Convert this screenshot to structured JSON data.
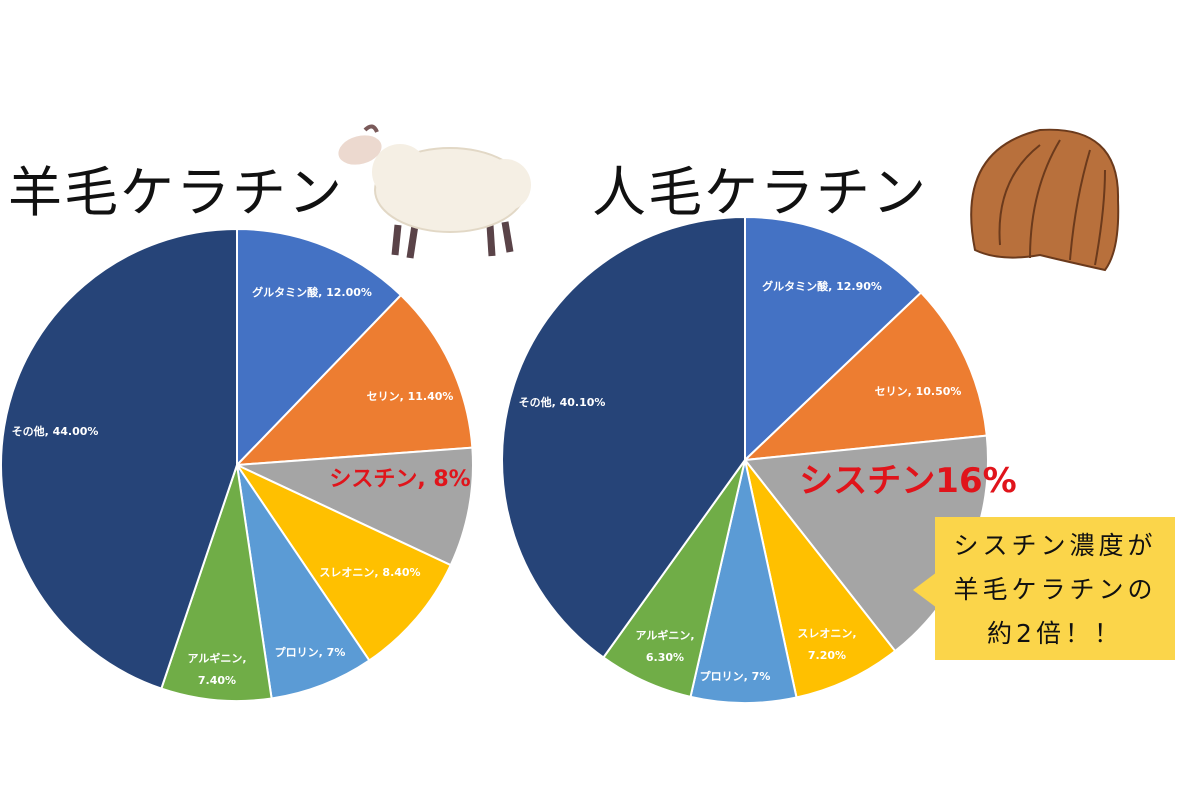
{
  "chart_data": [
    {
      "type": "pie",
      "title": "羊毛ケラチン",
      "categories": [
        "グルタミン酸",
        "セリン",
        "シスチン",
        "スレオニン",
        "プロリン",
        "アルギニン",
        "その他"
      ],
      "values": [
        12.0,
        11.4,
        8,
        8.4,
        7,
        7.4,
        44.0
      ],
      "labels": [
        [
          "グルタミン酸, 12.00%"
        ],
        [
          "セリン, 11.40%"
        ],
        [
          "シスチン, 8%"
        ],
        [
          "スレオニン, 8.40%"
        ],
        [
          "プロリン, 7%"
        ],
        [
          "アルギニン,",
          "7.40%"
        ],
        [
          "その他, 44.00%"
        ]
      ],
      "highlight_index": 2,
      "colors": [
        "#4472c4",
        "#ed7d31",
        "#a5a5a5",
        "#ffc000",
        "#5b9bd5",
        "#70ad47",
        "#264478"
      ]
    },
    {
      "type": "pie",
      "title": "人毛ケラチン",
      "categories": [
        "グルタミン酸",
        "セリン",
        "シスチン",
        "スレオニン",
        "プロリン",
        "アルギニン",
        "その他"
      ],
      "values": [
        12.9,
        10.5,
        16,
        7.2,
        7,
        6.3,
        40.1
      ],
      "labels": [
        [
          "グルタミン酸, 12.90%"
        ],
        [
          "セリン, 10.50%"
        ],
        [
          "シスチン16%"
        ],
        [
          "スレオニン,",
          "7.20%"
        ],
        [
          "プロリン, 7%"
        ],
        [
          "アルギニン,",
          "6.30%"
        ],
        [
          "その他, 40.10%"
        ]
      ],
      "highlight_index": 2,
      "colors": [
        "#4472c4",
        "#ed7d31",
        "#a5a5a5",
        "#ffc000",
        "#5b9bd5",
        "#70ad47",
        "#264478"
      ]
    }
  ],
  "callout": {
    "lines": [
      "シスチン濃度が",
      "羊毛ケラチンの",
      "約2倍！！"
    ]
  },
  "colors": {
    "highlight_text": "#e0141b",
    "callout_bg": "#fbd54a"
  },
  "icons": [
    "sheep-illustration",
    "hair-illustration"
  ]
}
